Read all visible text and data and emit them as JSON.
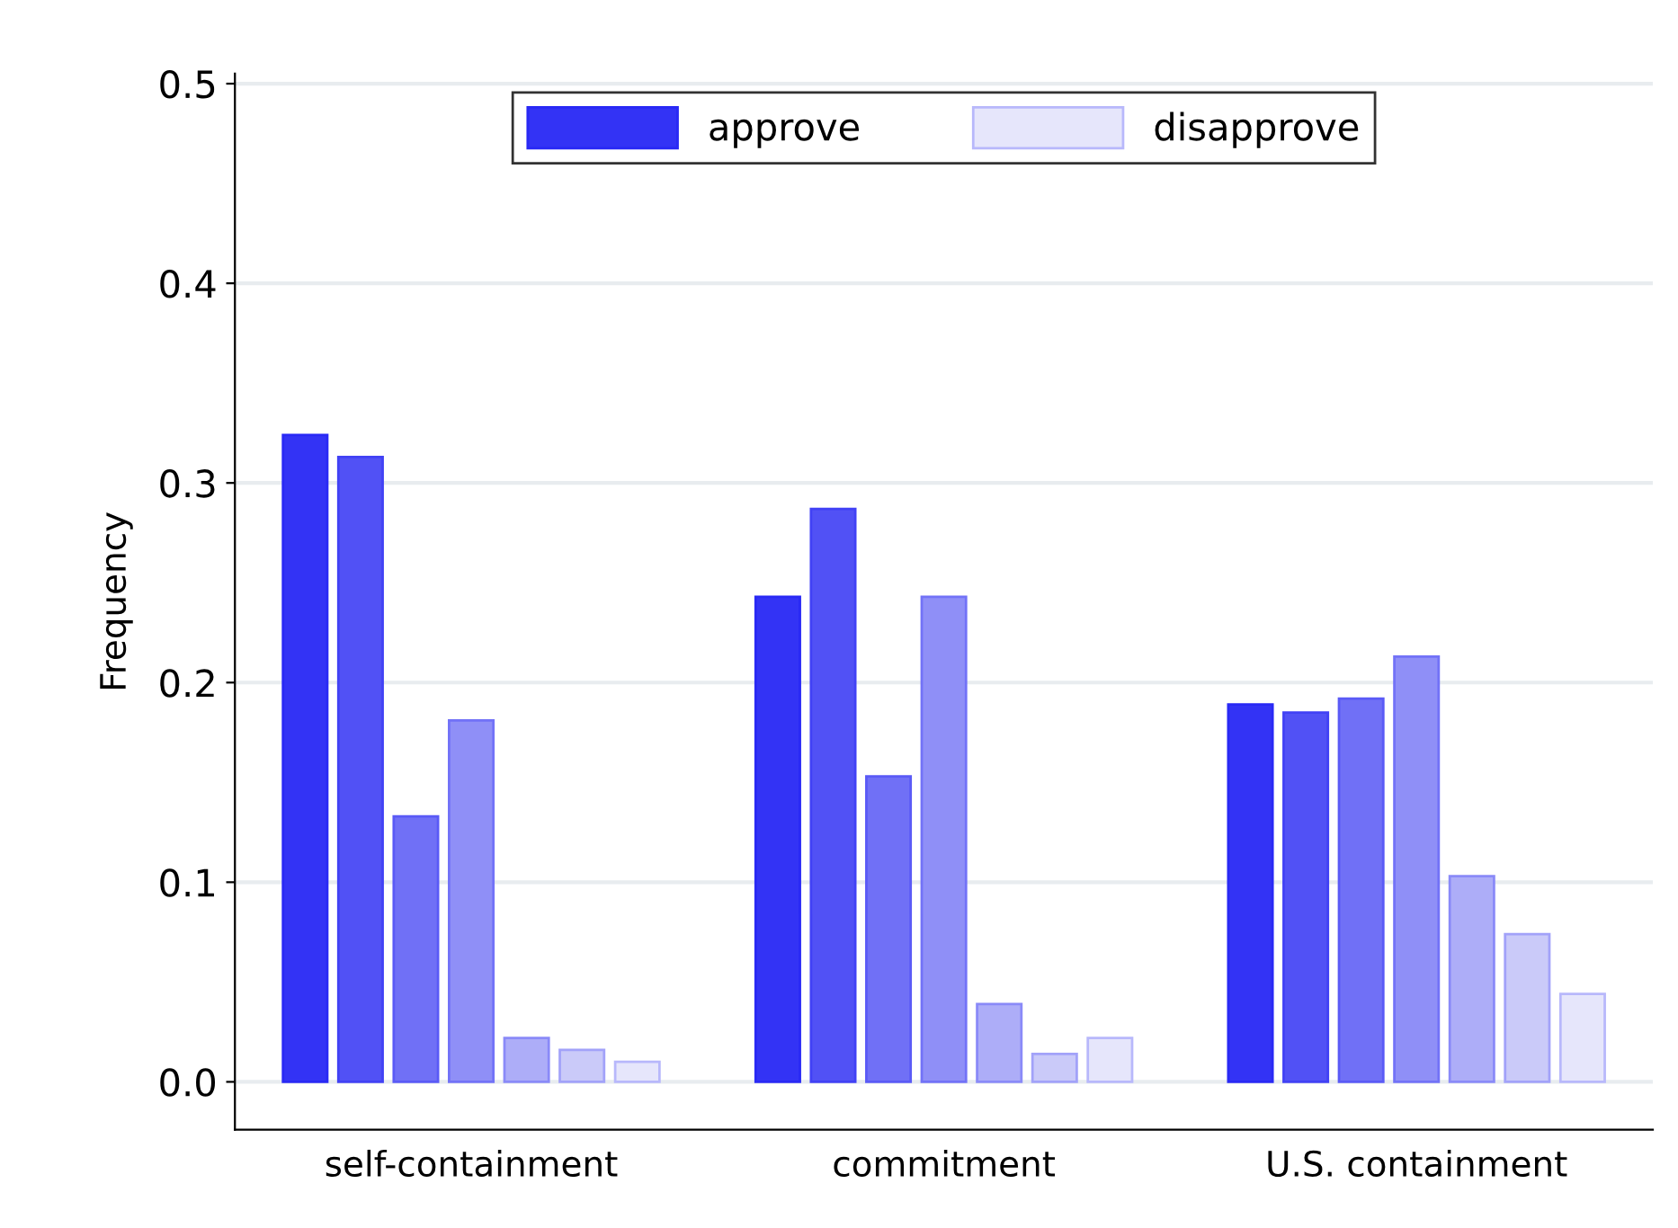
{
  "chart_data": {
    "type": "bar",
    "ylabel": "Frequency",
    "categories": [
      "self-containment",
      "commitment",
      "U.S. containment"
    ],
    "series": [
      {
        "name": "approve",
        "color": "#3333f5",
        "values": [
          0.324,
          0.243,
          0.189
        ]
      },
      {
        "color": "#5151f5",
        "values": [
          0.313,
          0.287,
          0.185
        ]
      },
      {
        "color": "#7070f6",
        "values": [
          0.133,
          0.153,
          0.192
        ]
      },
      {
        "color": "#8f8ff7",
        "values": [
          0.181,
          0.243,
          0.213
        ]
      },
      {
        "color": "#adadf8",
        "values": [
          0.022,
          0.039,
          0.103
        ]
      },
      {
        "color": "#cacaf9",
        "values": [
          0.016,
          0.014,
          0.074
        ]
      },
      {
        "name": "disapprove",
        "color": "#e6e6fb",
        "values": [
          0.01,
          0.022,
          0.044
        ]
      }
    ],
    "ylim": [
      -0.024,
      0.505
    ],
    "yticks": [
      {
        "value": 0,
        "label": "0.0"
      },
      0.1,
      0.2,
      0.3,
      0.4,
      0.5
    ],
    "grid": "y",
    "legend": "top"
  }
}
